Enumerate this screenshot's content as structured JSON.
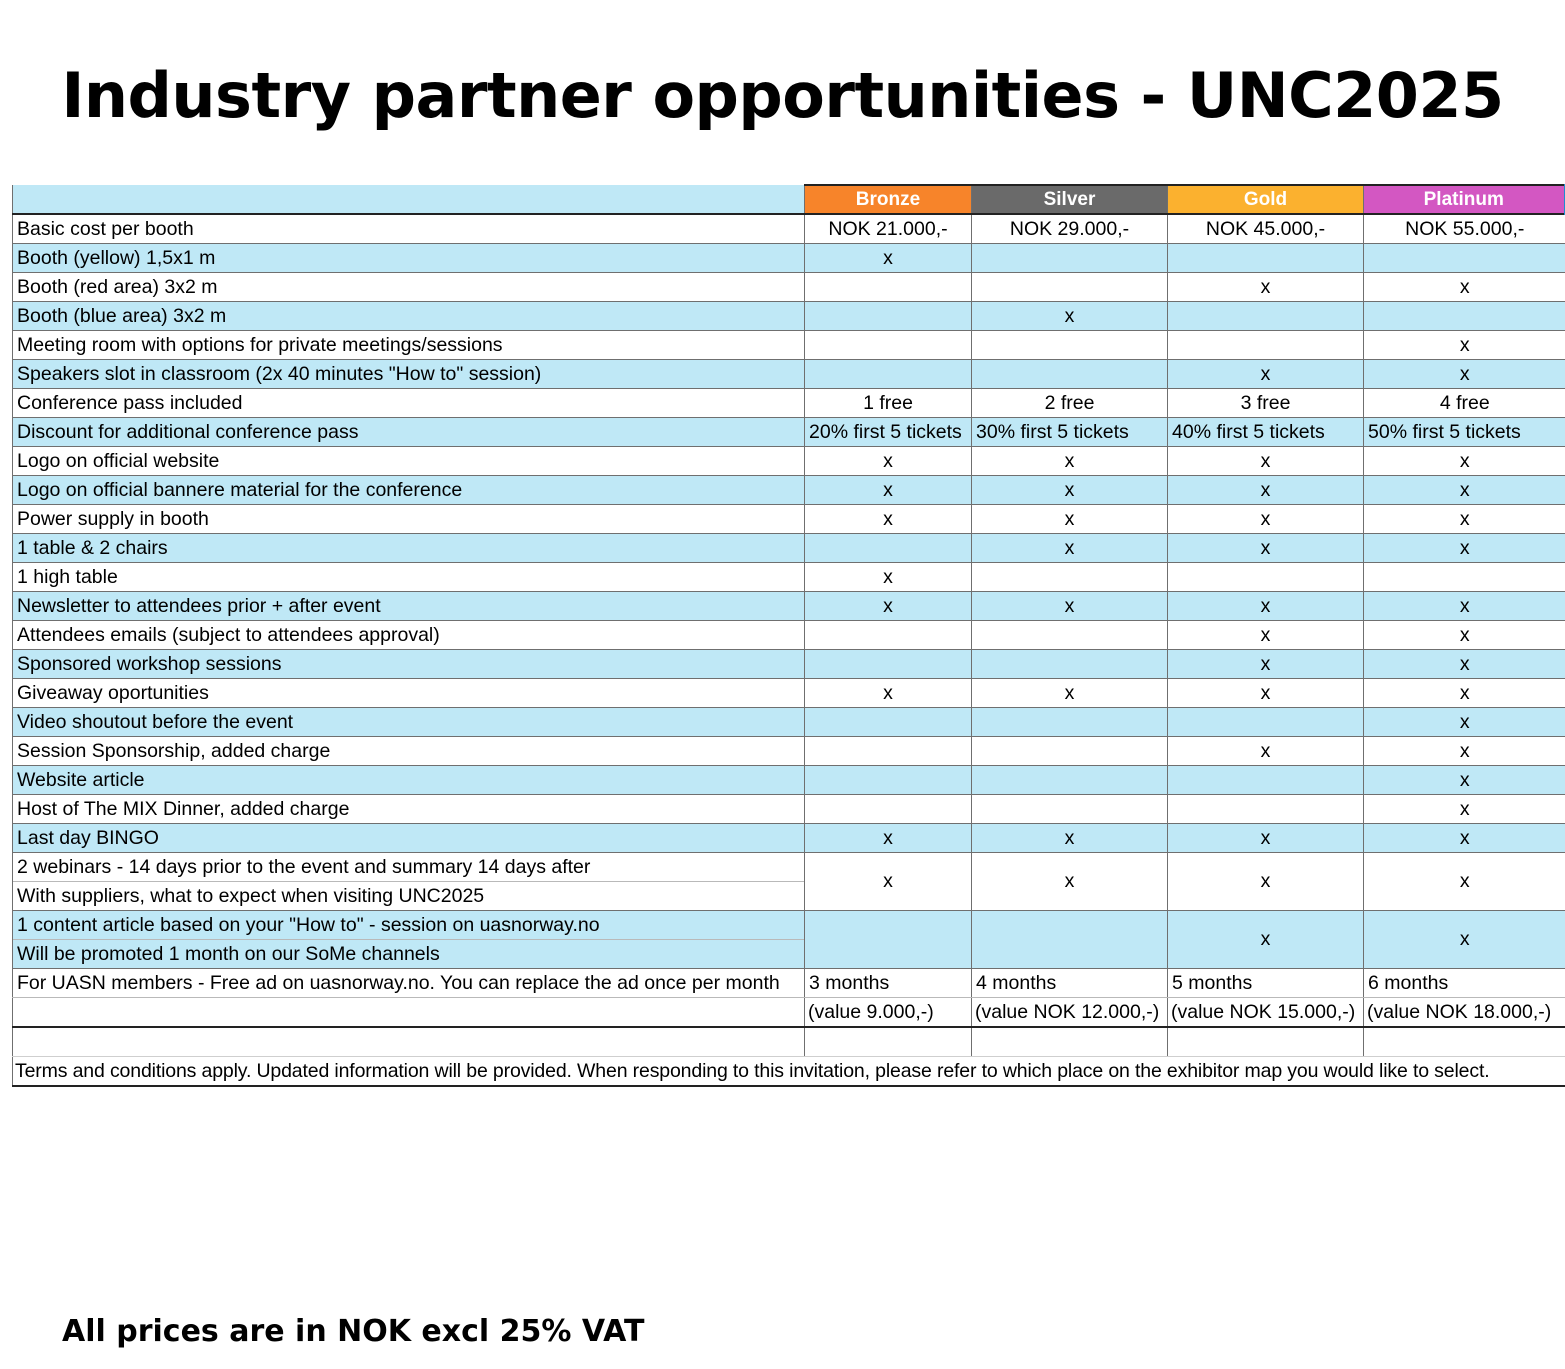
{
  "title": "Industry partner opportunities - UNC2025",
  "tiers": [
    "Bronze",
    "Silver",
    "Gold",
    "Platinum"
  ],
  "tier_colors": {
    "Bronze": "#f7842a",
    "Silver": "#6a6a6a",
    "Gold": "#fbb12f",
    "Platinum": "#d357c2"
  },
  "rows": [
    {
      "label": "Basic cost per booth",
      "values": [
        "NOK 21.000,-",
        "NOK 29.000,-",
        "NOK 45.000,-",
        "NOK 55.000,-"
      ]
    },
    {
      "label": "Booth (yellow) 1,5x1 m",
      "values": [
        "x",
        "",
        "",
        ""
      ]
    },
    {
      "label": "Booth (red area) 3x2 m",
      "values": [
        "",
        "",
        "x",
        "x"
      ]
    },
    {
      "label": "Booth (blue area) 3x2 m",
      "values": [
        "",
        "x",
        "",
        ""
      ]
    },
    {
      "label": "Meeting room with options for private meetings/sessions",
      "values": [
        "",
        "",
        "",
        "x"
      ]
    },
    {
      "label": "Speakers slot in classroom (2x 40 minutes \"How to\" session)",
      "values": [
        "",
        "",
        "x",
        "x"
      ]
    },
    {
      "label": "Conference pass included",
      "values": [
        "1 free",
        "2 free",
        "3 free",
        "4 free"
      ]
    },
    {
      "label": "Discount for additional conference pass",
      "values": [
        "20% first 5 tickets",
        "30% first 5 tickets",
        "40% first 5 tickets",
        "50% first 5 tickets"
      ]
    },
    {
      "label": "Logo on official website",
      "values": [
        "x",
        "x",
        "x",
        "x"
      ]
    },
    {
      "label": "Logo on official bannere material for the conference",
      "values": [
        "x",
        "x",
        "x",
        "x"
      ]
    },
    {
      "label": "Power supply in booth",
      "values": [
        "x",
        "x",
        "x",
        "x"
      ]
    },
    {
      "label": "1 table & 2 chairs",
      "values": [
        "",
        "x",
        "x",
        "x"
      ]
    },
    {
      "label": "1 high table",
      "values": [
        "x",
        "",
        "",
        ""
      ]
    },
    {
      "label": "Newsletter to attendees prior + after event",
      "values": [
        "x",
        "x",
        "x",
        "x"
      ]
    },
    {
      "label": "Attendees emails (subject to attendees approval)",
      "values": [
        "",
        "",
        "x",
        "x"
      ]
    },
    {
      "label": "Sponsored workshop sessions",
      "values": [
        "",
        "",
        "x",
        "x"
      ]
    },
    {
      "label": "Giveaway oportunities",
      "values": [
        "x",
        "x",
        "x",
        "x"
      ]
    },
    {
      "label": "Video shoutout before the event",
      "values": [
        "",
        "",
        "",
        "x"
      ]
    },
    {
      "label": "Session Sponsorship, added charge",
      "values": [
        "",
        "",
        "x",
        "x"
      ]
    },
    {
      "label": "Website article",
      "values": [
        "",
        "",
        "",
        "x"
      ]
    },
    {
      "label": "Host of The MIX Dinner, added charge",
      "values": [
        "",
        "",
        "",
        "x"
      ]
    },
    {
      "label": "Last day BINGO",
      "values": [
        "x",
        "x",
        "x",
        "x"
      ]
    }
  ],
  "webinars": {
    "line1": "2 webinars - 14 days prior to the event and summary 14 days after",
    "line2": "With suppliers, what to expect when visiting UNC2025",
    "values": [
      "x",
      "x",
      "x",
      "x"
    ]
  },
  "article": {
    "line1": "1 content article based on your \"How to\" - session on uasnorway.no",
    "line2": "Will be promoted 1 month on our SoMe channels",
    "values": [
      "",
      "",
      "x",
      "x"
    ]
  },
  "members": {
    "label": "For UASN members - Free ad on uasnorway.no. You can replace the ad once per month",
    "months": [
      "3 months",
      "4 months",
      "5 months",
      "6 months"
    ],
    "values": [
      "(value 9.000,-)",
      "(value NOK 12.000,-)",
      "(value NOK 15.000,-)",
      "(value NOK 18.000,-)"
    ]
  },
  "terms": "Terms and conditions apply. Updated information will be provided. When responding to this invitation, please refer to which place on the exhibitor map you would like to select.",
  "footer": "All prices are in  NOK excl 25% VAT"
}
